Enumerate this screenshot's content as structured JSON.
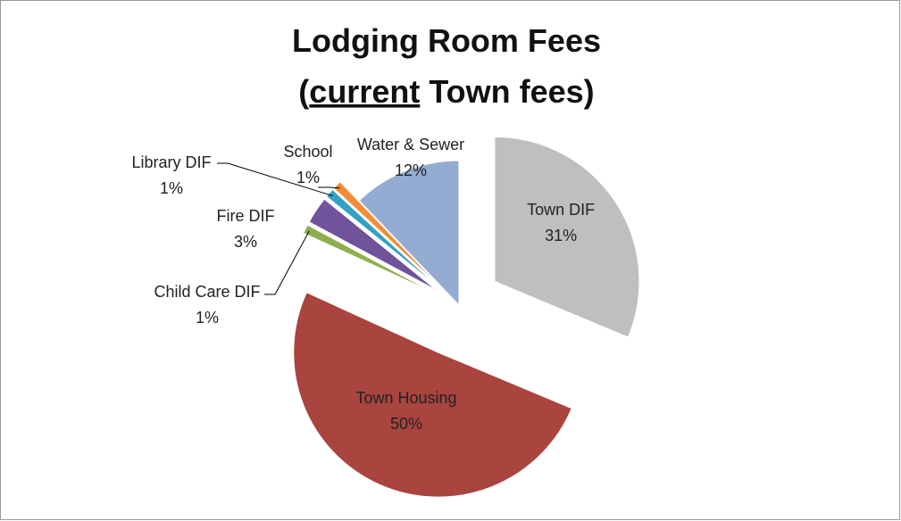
{
  "chart_data": {
    "type": "pie",
    "title": [
      "Lodging Room Fees",
      "(",
      "current",
      " Town fees)"
    ],
    "categories": [
      "Town DIF",
      "Town Housing",
      "Child Care DIF",
      "Fire DIF",
      "Library DIF",
      "School",
      "Water & Sewer"
    ],
    "values": [
      31,
      50,
      1,
      3,
      1,
      1,
      12
    ],
    "value_labels": [
      "31%",
      "50%",
      "1%",
      "3%",
      "1%",
      "1%",
      "12%"
    ],
    "colors": [
      "#bfbfbf",
      "#a9443f",
      "#8eaf4f",
      "#70539a",
      "#33a1c4",
      "#f28c36",
      "#94abd2"
    ]
  }
}
